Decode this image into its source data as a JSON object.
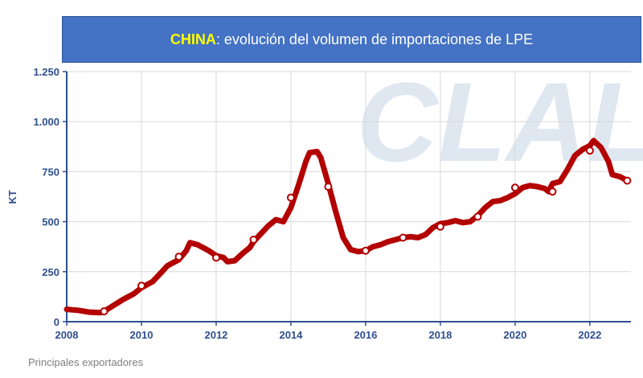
{
  "title": {
    "country": "CHINA",
    "text": ": evolución del volumen de importaciones de LPE"
  },
  "footnote": "Principales exportadores",
  "watermark": "CLAL",
  "colors": {
    "banner": "#4472c4",
    "country": "#ffff00",
    "line": "#b30000",
    "axis": "#2f4f8f",
    "grid": "#d9d9d9",
    "watermark": "#dfe7f1"
  },
  "chart_data": {
    "type": "line",
    "ylabel": "KT",
    "xlabel": "",
    "xlim": [
      2008,
      2023.1
    ],
    "ylim": [
      0,
      1250
    ],
    "x_ticks": [
      2008,
      2010,
      2012,
      2014,
      2016,
      2018,
      2020,
      2022
    ],
    "x_tick_labels": [
      "2008",
      "2010",
      "2012",
      "2014",
      "2016",
      "2018",
      "2020",
      "2022"
    ],
    "y_ticks": [
      0,
      250,
      500,
      750,
      1000,
      1250
    ],
    "y_tick_labels": [
      "0",
      "250",
      "500",
      "750",
      "1.000",
      "1.250"
    ],
    "grid": true,
    "series": [
      {
        "points": [
          [
            2008.0,
            62
          ],
          [
            2008.3,
            57
          ],
          [
            2008.6,
            48
          ],
          [
            2008.9,
            45
          ],
          [
            2009.0,
            52
          ],
          [
            2009.2,
            75
          ],
          [
            2009.5,
            110
          ],
          [
            2009.8,
            140
          ],
          [
            2010.0,
            170
          ],
          [
            2010.3,
            200
          ],
          [
            2010.5,
            240
          ],
          [
            2010.7,
            280
          ],
          [
            2011.0,
            310
          ],
          [
            2011.2,
            355
          ],
          [
            2011.3,
            395
          ],
          [
            2011.5,
            385
          ],
          [
            2011.8,
            355
          ],
          [
            2012.0,
            330
          ],
          [
            2012.2,
            320
          ],
          [
            2012.3,
            300
          ],
          [
            2012.5,
            305
          ],
          [
            2012.7,
            340
          ],
          [
            2012.9,
            370
          ],
          [
            2013.0,
            400
          ],
          [
            2013.2,
            440
          ],
          [
            2013.4,
            480
          ],
          [
            2013.6,
            510
          ],
          [
            2013.8,
            500
          ],
          [
            2014.0,
            570
          ],
          [
            2014.2,
            680
          ],
          [
            2014.4,
            800
          ],
          [
            2014.5,
            845
          ],
          [
            2014.7,
            850
          ],
          [
            2014.8,
            820
          ],
          [
            2015.0,
            690
          ],
          [
            2015.2,
            550
          ],
          [
            2015.4,
            420
          ],
          [
            2015.6,
            360
          ],
          [
            2015.8,
            350
          ],
          [
            2016.0,
            355
          ],
          [
            2016.2,
            375
          ],
          [
            2016.4,
            385
          ],
          [
            2016.6,
            400
          ],
          [
            2016.8,
            410
          ],
          [
            2017.0,
            420
          ],
          [
            2017.2,
            425
          ],
          [
            2017.4,
            420
          ],
          [
            2017.6,
            435
          ],
          [
            2017.8,
            470
          ],
          [
            2018.0,
            490
          ],
          [
            2018.2,
            495
          ],
          [
            2018.4,
            505
          ],
          [
            2018.6,
            495
          ],
          [
            2018.8,
            500
          ],
          [
            2019.0,
            530
          ],
          [
            2019.2,
            570
          ],
          [
            2019.4,
            600
          ],
          [
            2019.6,
            605
          ],
          [
            2019.8,
            620
          ],
          [
            2020.0,
            640
          ],
          [
            2020.2,
            670
          ],
          [
            2020.4,
            680
          ],
          [
            2020.6,
            675
          ],
          [
            2020.8,
            665
          ],
          [
            2020.9,
            650
          ],
          [
            2021.0,
            690
          ],
          [
            2021.2,
            700
          ],
          [
            2021.4,
            760
          ],
          [
            2021.6,
            830
          ],
          [
            2021.8,
            860
          ],
          [
            2022.0,
            880
          ],
          [
            2022.1,
            905
          ],
          [
            2022.3,
            870
          ],
          [
            2022.5,
            800
          ],
          [
            2022.6,
            735
          ],
          [
            2022.8,
            725
          ],
          [
            2023.0,
            705
          ]
        ],
        "markers": [
          [
            2009.0,
            52
          ],
          [
            2010.0,
            180
          ],
          [
            2011.0,
            325
          ],
          [
            2012.0,
            320
          ],
          [
            2013.0,
            410
          ],
          [
            2014.0,
            620
          ],
          [
            2015.0,
            675
          ],
          [
            2016.0,
            355
          ],
          [
            2017.0,
            420
          ],
          [
            2018.0,
            475
          ],
          [
            2019.0,
            525
          ],
          [
            2020.0,
            670
          ],
          [
            2021.0,
            650
          ],
          [
            2022.0,
            855
          ],
          [
            2023.0,
            705
          ]
        ]
      }
    ]
  }
}
